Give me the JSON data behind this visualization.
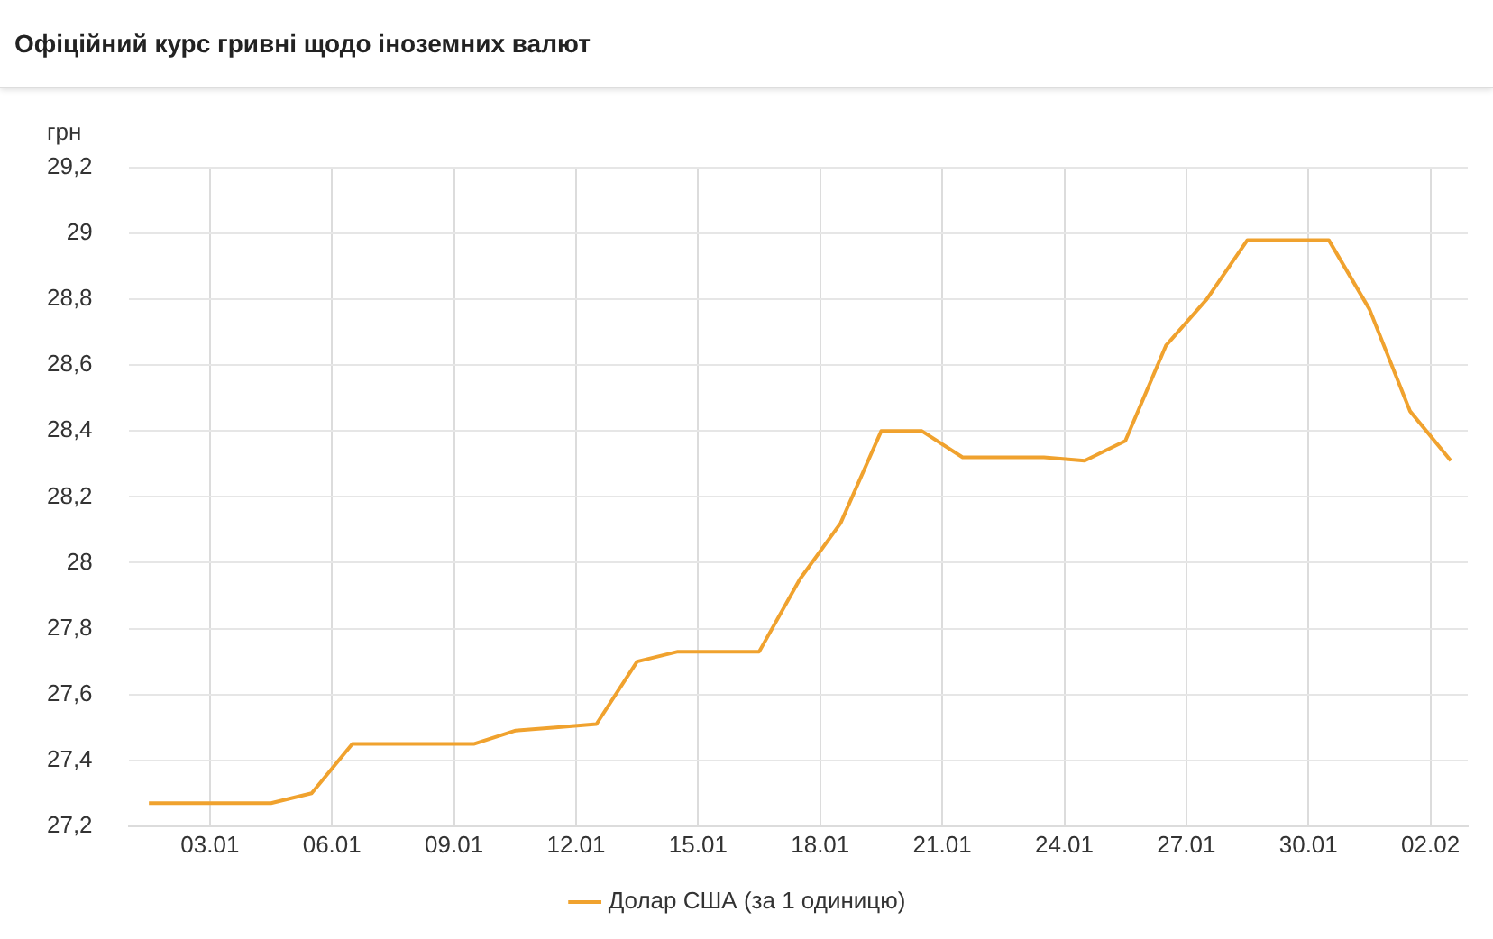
{
  "chart_data": {
    "type": "line",
    "title": "Офіційний курс гривні щодо іноземних валют",
    "ylabel": "грн",
    "x": [
      "--01-01T12:00",
      "--01-02T12:00",
      "--01-03T12:00",
      "--01-04T12:00",
      "--01-05T12:00",
      "--01-06T12:00",
      "--01-07T12:00",
      "--01-08T12:00",
      "--01-09T12:00",
      "--01-10T12:00",
      "--01-11T12:00",
      "--01-12T12:00",
      "--01-13T12:00",
      "--01-14T12:00",
      "--01-15T12:00",
      "--01-16T12:00",
      "--01-17T12:00",
      "--01-18T12:00",
      "--01-19T12:00",
      "--01-20T12:00",
      "--01-21T12:00",
      "--01-22T12:00",
      "--01-23T12:00",
      "--01-24T12:00",
      "--01-25T12:00",
      "--01-26T12:00",
      "--01-27T12:00",
      "--01-28T12:00",
      "--01-29T12:00",
      "--01-30T12:00",
      "--01-31T12:00",
      "--02-01T12:00",
      "--02-02T12:00"
    ],
    "series": [
      {
        "name": "Долар США (за 1 одиницю)",
        "color": "#f0a22e",
        "values": [
          27.27,
          27.27,
          27.27,
          27.27,
          27.3,
          27.45,
          27.45,
          27.45,
          27.45,
          27.49,
          27.5,
          27.51,
          27.7,
          27.73,
          27.73,
          27.73,
          27.95,
          28.12,
          28.4,
          28.4,
          28.32,
          28.32,
          28.32,
          28.31,
          28.37,
          28.66,
          28.8,
          28.98,
          28.98,
          28.98,
          28.77,
          28.46,
          28.31
        ]
      }
    ],
    "xlim": [
      "--01-01T00:00",
      "--02-02T22:00"
    ],
    "xticks": [
      {
        "value": "--01-03",
        "label": "03.01"
      },
      {
        "value": "--01-06",
        "label": "06.01"
      },
      {
        "value": "--01-09",
        "label": "09.01"
      },
      {
        "value": "--01-12",
        "label": "12.01"
      },
      {
        "value": "--01-15",
        "label": "15.01"
      },
      {
        "value": "--01-18",
        "label": "18.01"
      },
      {
        "value": "--01-21",
        "label": "21.01"
      },
      {
        "value": "--01-24",
        "label": "24.01"
      },
      {
        "value": "--01-27",
        "label": "27.01"
      },
      {
        "value": "--01-30",
        "label": "30.01"
      },
      {
        "value": "--02-02",
        "label": "02.02"
      }
    ],
    "ylim": [
      27.2,
      29.2
    ],
    "yticks": [
      {
        "value": 27.2,
        "label": "27,2"
      },
      {
        "value": 27.4,
        "label": "27,4"
      },
      {
        "value": 27.6,
        "label": "27,6"
      },
      {
        "value": 27.8,
        "label": "27,8"
      },
      {
        "value": 28,
        "label": "28"
      },
      {
        "value": 28.2,
        "label": "28,2"
      },
      {
        "value": 28.4,
        "label": "28,4"
      },
      {
        "value": 28.6,
        "label": "28,6"
      },
      {
        "value": 28.8,
        "label": "28,8"
      },
      {
        "value": 29,
        "label": "29"
      },
      {
        "value": 29.2,
        "label": "29,2"
      }
    ],
    "grid": true,
    "legend": "bottom",
    "marker": "none",
    "line_style": "solid"
  }
}
